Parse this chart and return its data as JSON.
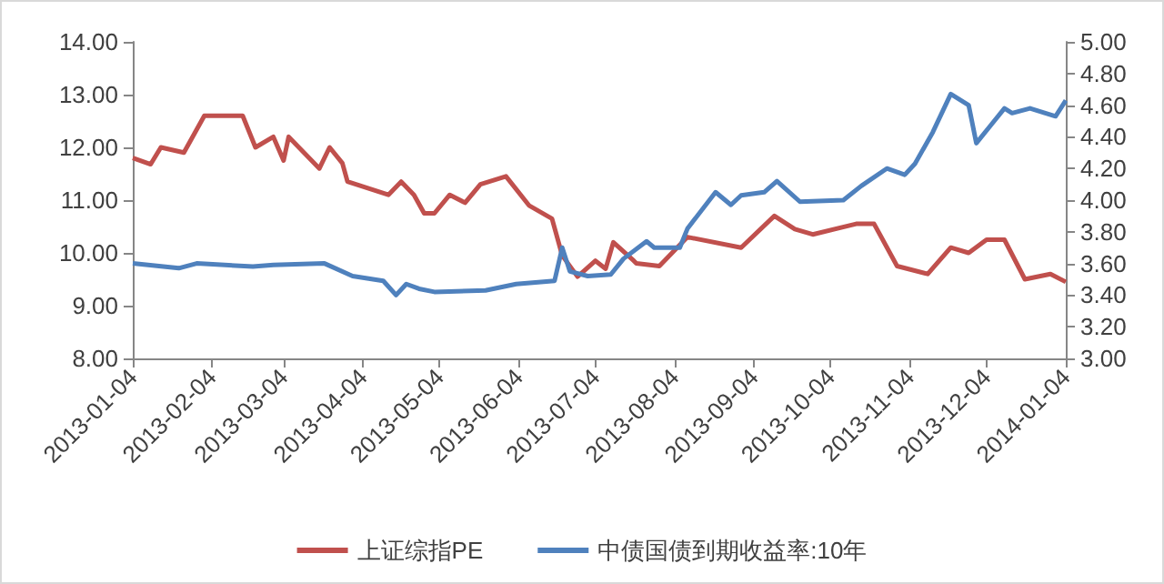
{
  "chart_data": {
    "type": "line",
    "x": [
      "2013-01-04",
      "2013-01-11",
      "2013-01-15",
      "2013-01-24",
      "2013-02-01",
      "2013-02-16",
      "2013-02-21",
      "2013-02-28",
      "2013-03-04",
      "2013-03-06",
      "2013-03-18",
      "2013-03-22",
      "2013-03-27",
      "2013-03-29",
      "2013-04-14",
      "2013-04-19",
      "2013-04-24",
      "2013-04-28",
      "2013-05-02",
      "2013-05-08",
      "2013-05-14",
      "2013-05-20",
      "2013-05-30",
      "2013-06-08",
      "2013-06-17",
      "2013-06-21",
      "2013-06-27",
      "2013-07-04",
      "2013-07-08",
      "2013-07-11",
      "2013-07-19",
      "2013-07-20",
      "2013-07-29",
      "2013-08-09",
      "2013-08-30",
      "2013-09-12",
      "2013-09-20",
      "2013-09-27",
      "2013-10-14",
      "2013-10-21",
      "2013-10-30",
      "2013-11-11",
      "2013-11-20",
      "2013-11-27",
      "2013-12-04",
      "2013-12-11",
      "2013-12-19",
      "2013-12-29",
      "2014-01-04"
    ],
    "series": [
      {
        "name": "上证综指PE",
        "color": "#c0504d",
        "values": [
          11.8,
          11.68,
          12.0,
          11.9,
          12.6,
          12.6,
          12.0,
          12.2,
          11.75,
          12.2,
          11.6,
          12.0,
          11.7,
          11.35,
          11.1,
          11.35,
          11.1,
          10.75,
          10.75,
          11.1,
          10.95,
          11.3,
          11.45,
          10.9,
          10.65,
          9.95,
          9.55,
          9.85,
          9.7,
          10.2,
          9.85,
          9.8,
          9.75,
          10.3,
          10.1,
          10.7,
          10.45,
          10.35,
          10.55,
          10.55,
          9.75,
          9.6,
          10.1,
          10.0,
          10.25,
          10.25,
          9.5,
          9.6,
          9.45
        ]
      },
      {
        "name": "中债国债到期收益率:10年",
        "color": "#4f81bd",
        "axis": "y2",
        "x": [
          "2013-01-04",
          "2013-01-22",
          "2013-01-29",
          "2013-02-20",
          "2013-02-28",
          "2013-03-20",
          "2013-03-31",
          "2013-04-12",
          "2013-04-17",
          "2013-04-21",
          "2013-04-26",
          "2013-05-02",
          "2013-05-22",
          "2013-06-03",
          "2013-06-18",
          "2013-06-21",
          "2013-06-24",
          "2013-07-01",
          "2013-07-10",
          "2013-07-15",
          "2013-07-24",
          "2013-07-27",
          "2013-08-06",
          "2013-08-09",
          "2013-08-20",
          "2013-08-26",
          "2013-08-30",
          "2013-09-08",
          "2013-09-13",
          "2013-09-22",
          "2013-10-09",
          "2013-10-16",
          "2013-10-26",
          "2013-11-02",
          "2013-11-06",
          "2013-11-13",
          "2013-11-20",
          "2013-11-27",
          "2013-11-30",
          "2013-12-06",
          "2013-12-11",
          "2013-12-14",
          "2013-12-21",
          "2013-12-31",
          "2014-01-04"
        ],
        "values": [
          3.6,
          3.57,
          3.6,
          3.58,
          3.59,
          3.6,
          3.52,
          3.49,
          3.4,
          3.47,
          3.44,
          3.42,
          3.43,
          3.47,
          3.49,
          3.7,
          3.55,
          3.52,
          3.53,
          3.63,
          3.74,
          3.7,
          3.7,
          3.82,
          4.05,
          3.97,
          4.03,
          4.05,
          4.12,
          3.99,
          4.0,
          4.09,
          4.2,
          4.16,
          4.23,
          4.43,
          4.67,
          4.6,
          4.36,
          4.48,
          4.58,
          4.55,
          4.58,
          4.53,
          4.63
        ]
      }
    ],
    "xlim": [
      "2013-01-04",
      "2014-01-04"
    ],
    "xticks": [
      "2013-01-04",
      "2013-02-04",
      "2013-03-04",
      "2013-04-04",
      "2013-05-04",
      "2013-06-04",
      "2013-07-04",
      "2013-08-04",
      "2013-09-04",
      "2013-10-04",
      "2013-11-04",
      "2013-12-04",
      "2014-01-04"
    ],
    "ylim": [
      8,
      14
    ],
    "yticks": [
      {
        "value": 8,
        "label": "8.00"
      },
      {
        "value": 9,
        "label": "9.00"
      },
      {
        "value": 10,
        "label": "10.00"
      },
      {
        "value": 11,
        "label": "11.00"
      },
      {
        "value": 12,
        "label": "12.00"
      },
      {
        "value": 13,
        "label": "13.00"
      },
      {
        "value": 14,
        "label": "14.00"
      }
    ],
    "y2lim": [
      3,
      5
    ],
    "y2ticks": [
      {
        "value": 3,
        "label": "3.00"
      },
      {
        "value": 3.2,
        "label": "3.20"
      },
      {
        "value": 3.4,
        "label": "3.40"
      },
      {
        "value": 3.6,
        "label": "3.60"
      },
      {
        "value": 3.8,
        "label": "3.80"
      },
      {
        "value": 4,
        "label": "4.00"
      },
      {
        "value": 4.2,
        "label": "4.20"
      },
      {
        "value": 4.4,
        "label": "4.40"
      },
      {
        "value": 4.6,
        "label": "4.60"
      },
      {
        "value": 4.8,
        "label": "4.80"
      },
      {
        "value": 5,
        "label": "5.00"
      }
    ],
    "grid": false,
    "legend": "bottom",
    "marker": "none"
  }
}
